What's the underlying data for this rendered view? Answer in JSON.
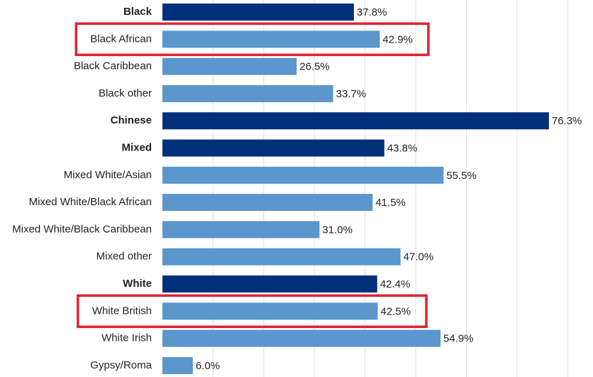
{
  "chart_data": {
    "type": "hbar",
    "categories": [
      "Black",
      "Black African",
      "Black Caribbean",
      "Black other",
      "Chinese",
      "Mixed",
      "Mixed White/Asian",
      "Mixed White/Black African",
      "Mixed White/Black Caribbean",
      "Mixed other",
      "White",
      "White British",
      "White Irish",
      "Gypsy/Roma"
    ],
    "values": [
      37.8,
      42.9,
      26.5,
      33.7,
      76.3,
      43.8,
      55.5,
      41.5,
      31.0,
      47.0,
      42.4,
      42.5,
      54.9,
      6.0
    ],
    "value_labels": [
      "37.8%",
      "42.9%",
      "26.5%",
      "33.7%",
      "76.3%",
      "43.8%",
      "55.5%",
      "41.5%",
      "31.0%",
      "47.0%",
      "42.4%",
      "42.5%",
      "54.9%",
      "6.0%"
    ],
    "group_headers": [
      0,
      4,
      5,
      10
    ],
    "header_color": "#00307a",
    "color": "#5b96cc",
    "highlight_rows": [
      1,
      11
    ],
    "highlight_color": "#e3212d",
    "xlim": [
      0,
      85
    ],
    "xticks": [
      10,
      20,
      30,
      40,
      50,
      60,
      70,
      80
    ],
    "tick_labels": false,
    "grid": true
  }
}
